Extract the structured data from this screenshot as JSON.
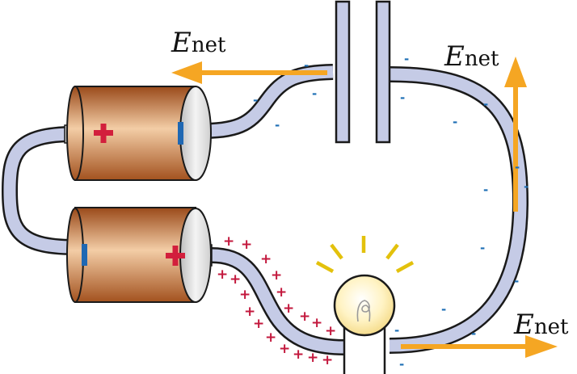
{
  "labels": {
    "field_letter": "E",
    "field_subscript": "net"
  },
  "charges": {
    "negative_symbol": "-",
    "positive_symbol": "+"
  },
  "colors": {
    "wire_fill": "#c5cbe6",
    "wire_stroke": "#1a1a1a",
    "arrow": "#f5a623",
    "battery_dark": "#a3521f",
    "battery_light": "#f2c9a0",
    "battery_cap": "#e3e3e3",
    "plus_terminal": "#d21f3c",
    "minus_terminal": "#1f68b3",
    "bulb_glow": "#fff6cf",
    "rays": "#e3c10c",
    "negative_charge": "#1e6fb5",
    "positive_charge": "#c3183d"
  }
}
